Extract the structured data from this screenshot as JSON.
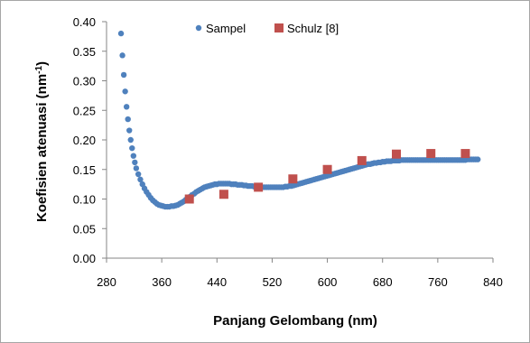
{
  "chart_data": {
    "type": "scatter",
    "xlabel": "Panjang Gelombang (nm)",
    "ylabel_main": "Koefisien atenuasi (nm",
    "ylabel_sup": "-1",
    "ylabel_end": ")",
    "xlim": [
      280,
      840
    ],
    "ylim": [
      0,
      0.4
    ],
    "x_ticks": [
      "280",
      "360",
      "440",
      "520",
      "600",
      "680",
      "760",
      "840"
    ],
    "y_ticks": [
      "0.00",
      "0.05",
      "0.10",
      "0.15",
      "0.20",
      "0.25",
      "0.30",
      "0.35",
      "0.40"
    ],
    "grid": false,
    "legend_position": "top",
    "series": [
      {
        "name": "Sampel",
        "marker": "circle",
        "color": "#4f81bd",
        "points": [
          [
            301,
            0.38
          ],
          [
            303,
            0.343
          ],
          [
            305,
            0.31
          ],
          [
            307,
            0.282
          ],
          [
            309,
            0.256
          ],
          [
            311,
            0.235
          ],
          [
            313,
            0.216
          ],
          [
            315,
            0.2
          ],
          [
            317,
            0.186
          ],
          [
            319,
            0.173
          ],
          [
            321,
            0.162
          ],
          [
            323,
            0.152
          ],
          [
            326,
            0.142
          ],
          [
            329,
            0.133
          ],
          [
            332,
            0.125
          ],
          [
            335,
            0.118
          ],
          [
            338,
            0.112
          ],
          [
            341,
            0.107
          ],
          [
            344,
            0.102
          ],
          [
            347,
            0.098
          ],
          [
            350,
            0.095
          ],
          [
            353,
            0.092
          ],
          [
            356,
            0.09
          ],
          [
            359,
            0.089
          ],
          [
            362,
            0.088
          ],
          [
            365,
            0.087
          ],
          [
            368,
            0.087
          ],
          [
            371,
            0.087
          ],
          [
            374,
            0.088
          ],
          [
            377,
            0.088
          ],
          [
            380,
            0.089
          ],
          [
            383,
            0.09
          ],
          [
            386,
            0.092
          ],
          [
            389,
            0.094
          ],
          [
            392,
            0.096
          ],
          [
            395,
            0.099
          ],
          [
            398,
            0.101
          ],
          [
            401,
            0.104
          ],
          [
            404,
            0.107
          ],
          [
            407,
            0.109
          ],
          [
            410,
            0.112
          ],
          [
            413,
            0.114
          ],
          [
            416,
            0.116
          ],
          [
            419,
            0.118
          ],
          [
            422,
            0.12
          ],
          [
            425,
            0.121
          ],
          [
            428,
            0.122
          ],
          [
            431,
            0.123
          ],
          [
            434,
            0.124
          ],
          [
            437,
            0.125
          ],
          [
            440,
            0.125
          ],
          [
            443,
            0.126
          ],
          [
            446,
            0.126
          ],
          [
            449,
            0.126
          ],
          [
            452,
            0.126
          ],
          [
            455,
            0.126
          ],
          [
            458,
            0.126
          ],
          [
            461,
            0.125
          ],
          [
            464,
            0.125
          ],
          [
            467,
            0.125
          ],
          [
            470,
            0.124
          ],
          [
            473,
            0.124
          ],
          [
            476,
            0.124
          ],
          [
            479,
            0.123
          ],
          [
            482,
            0.123
          ],
          [
            485,
            0.122
          ],
          [
            488,
            0.122
          ],
          [
            491,
            0.122
          ],
          [
            494,
            0.121
          ],
          [
            497,
            0.121
          ],
          [
            500,
            0.121
          ],
          [
            503,
            0.12
          ],
          [
            506,
            0.12
          ],
          [
            509,
            0.12
          ],
          [
            512,
            0.12
          ],
          [
            515,
            0.12
          ],
          [
            518,
            0.12
          ],
          [
            521,
            0.12
          ],
          [
            524,
            0.12
          ],
          [
            527,
            0.12
          ],
          [
            530,
            0.12
          ],
          [
            533,
            0.12
          ],
          [
            536,
            0.12
          ],
          [
            539,
            0.121
          ],
          [
            542,
            0.121
          ],
          [
            545,
            0.122
          ],
          [
            548,
            0.122
          ],
          [
            551,
            0.123
          ],
          [
            554,
            0.124
          ],
          [
            557,
            0.125
          ],
          [
            560,
            0.126
          ],
          [
            563,
            0.127
          ],
          [
            566,
            0.128
          ],
          [
            569,
            0.129
          ],
          [
            572,
            0.13
          ],
          [
            575,
            0.131
          ],
          [
            578,
            0.132
          ],
          [
            581,
            0.133
          ],
          [
            584,
            0.134
          ],
          [
            587,
            0.135
          ],
          [
            590,
            0.136
          ],
          [
            593,
            0.137
          ],
          [
            596,
            0.138
          ],
          [
            599,
            0.139
          ],
          [
            602,
            0.14
          ],
          [
            605,
            0.141
          ],
          [
            608,
            0.142
          ],
          [
            611,
            0.143
          ],
          [
            614,
            0.144
          ],
          [
            617,
            0.145
          ],
          [
            620,
            0.146
          ],
          [
            623,
            0.147
          ],
          [
            626,
            0.148
          ],
          [
            629,
            0.149
          ],
          [
            632,
            0.15
          ],
          [
            635,
            0.151
          ],
          [
            638,
            0.152
          ],
          [
            641,
            0.153
          ],
          [
            644,
            0.154
          ],
          [
            647,
            0.155
          ],
          [
            650,
            0.156
          ],
          [
            653,
            0.157
          ],
          [
            656,
            0.158
          ],
          [
            659,
            0.159
          ],
          [
            662,
            0.159
          ],
          [
            665,
            0.16
          ],
          [
            668,
            0.161
          ],
          [
            671,
            0.161
          ],
          [
            674,
            0.162
          ],
          [
            677,
            0.162
          ],
          [
            680,
            0.163
          ],
          [
            683,
            0.163
          ],
          [
            686,
            0.164
          ],
          [
            689,
            0.164
          ],
          [
            692,
            0.164
          ],
          [
            695,
            0.165
          ],
          [
            698,
            0.165
          ],
          [
            701,
            0.165
          ],
          [
            704,
            0.165
          ],
          [
            707,
            0.166
          ],
          [
            710,
            0.166
          ],
          [
            713,
            0.166
          ],
          [
            716,
            0.166
          ],
          [
            719,
            0.166
          ],
          [
            722,
            0.166
          ],
          [
            725,
            0.166
          ],
          [
            728,
            0.166
          ],
          [
            731,
            0.166
          ],
          [
            734,
            0.166
          ],
          [
            737,
            0.166
          ],
          [
            740,
            0.166
          ],
          [
            743,
            0.166
          ],
          [
            746,
            0.166
          ],
          [
            749,
            0.166
          ],
          [
            752,
            0.166
          ],
          [
            755,
            0.166
          ],
          [
            758,
            0.166
          ],
          [
            761,
            0.166
          ],
          [
            764,
            0.166
          ],
          [
            767,
            0.166
          ],
          [
            770,
            0.166
          ],
          [
            773,
            0.166
          ],
          [
            776,
            0.166
          ],
          [
            779,
            0.166
          ],
          [
            782,
            0.166
          ],
          [
            785,
            0.166
          ],
          [
            788,
            0.166
          ],
          [
            791,
            0.166
          ],
          [
            794,
            0.166
          ],
          [
            797,
            0.166
          ],
          [
            800,
            0.166
          ],
          [
            803,
            0.167
          ],
          [
            806,
            0.167
          ],
          [
            809,
            0.167
          ],
          [
            812,
            0.167
          ],
          [
            815,
            0.167
          ],
          [
            818,
            0.167
          ]
        ]
      },
      {
        "name": "Schulz [8]",
        "marker": "square",
        "color": "#c0504d",
        "points": [
          [
            400,
            0.1
          ],
          [
            450,
            0.108
          ],
          [
            500,
            0.12
          ],
          [
            550,
            0.134
          ],
          [
            600,
            0.15
          ],
          [
            650,
            0.165
          ],
          [
            700,
            0.176
          ],
          [
            750,
            0.177
          ],
          [
            800,
            0.177
          ]
        ]
      }
    ]
  }
}
